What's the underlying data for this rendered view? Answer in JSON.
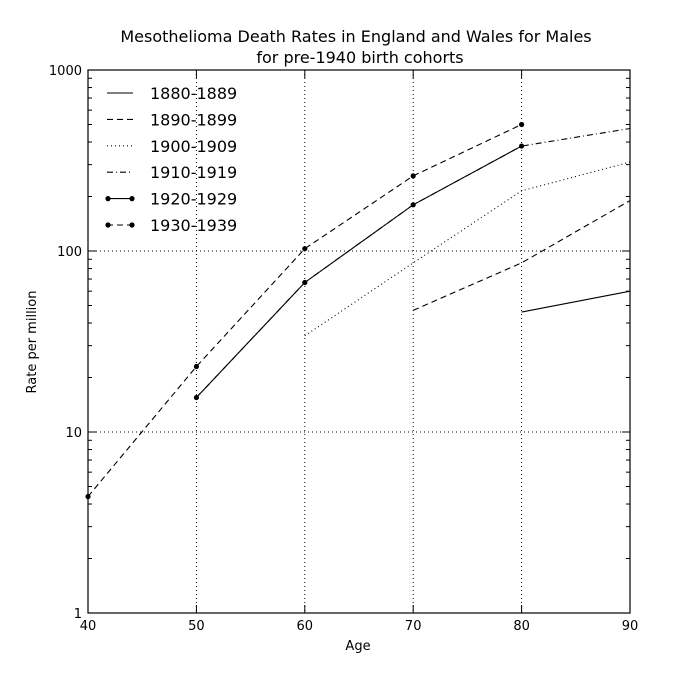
{
  "chart_data": {
    "type": "line",
    "title": [
      "Mesothelioma Death Rates in England and Wales for Males",
      "for pre-1940 birth cohorts"
    ],
    "xlabel": "Age",
    "ylabel": "Rate per million",
    "xlim": [
      40,
      90
    ],
    "ylim": [
      1,
      1000
    ],
    "yscale": "log",
    "grid": true,
    "legend": "top-left",
    "x_ticks": [
      40,
      50,
      60,
      70,
      80,
      90
    ],
    "x_tick_labels": [
      "40",
      "50",
      "60",
      "70",
      "80",
      "90"
    ],
    "y_ticks": [
      1,
      10,
      100,
      1000
    ],
    "y_tick_labels": [
      "1",
      "10",
      "100",
      "1000"
    ],
    "series": [
      {
        "name": "1880-1889",
        "style": "solid",
        "markers": false,
        "x": [
          80,
          90
        ],
        "y": [
          46,
          60
        ]
      },
      {
        "name": "1890-1899",
        "style": "dashed",
        "markers": false,
        "x": [
          70,
          80,
          90
        ],
        "y": [
          47,
          86,
          190
        ]
      },
      {
        "name": "1900-1909",
        "style": "dotted",
        "markers": false,
        "x": [
          60,
          70,
          80,
          90
        ],
        "y": [
          34,
          86,
          215,
          310
        ]
      },
      {
        "name": "1910-1919",
        "style": "dashdot",
        "markers": false,
        "x": [
          50,
          60,
          70,
          80,
          90
        ],
        "y": [
          15.5,
          67,
          180,
          380,
          475
        ]
      },
      {
        "name": "1920-1929",
        "style": "solid",
        "markers": true,
        "x": [
          50,
          60,
          70,
          80
        ],
        "y": [
          15.5,
          67,
          180,
          380
        ]
      },
      {
        "name": "1930-1939",
        "style": "dashed",
        "markers": true,
        "x": [
          40,
          50,
          60,
          70,
          80
        ],
        "y": [
          4.4,
          23,
          103,
          260,
          500
        ]
      }
    ]
  }
}
